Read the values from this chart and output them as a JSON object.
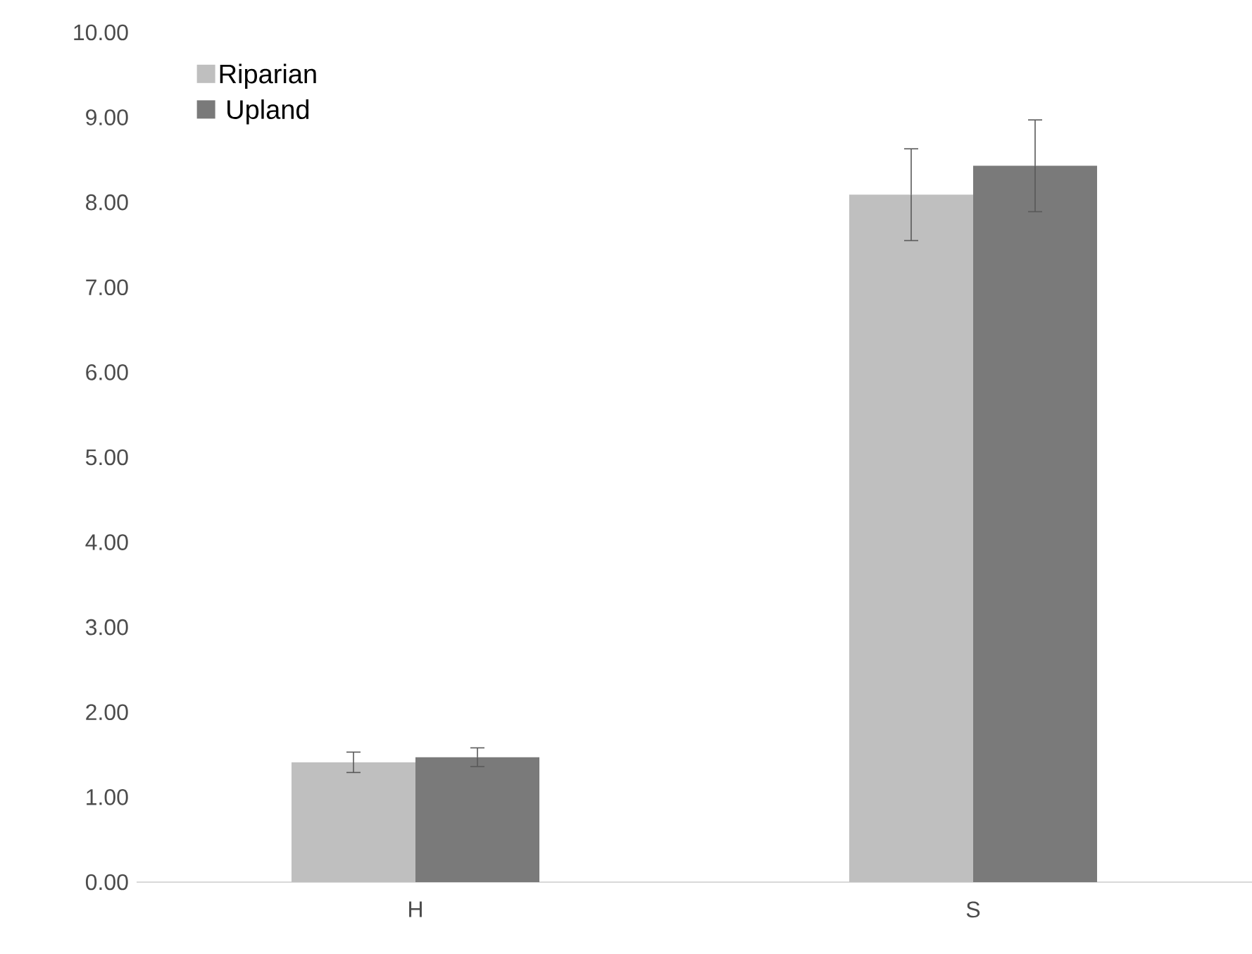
{
  "chart_data": {
    "type": "bar",
    "categories": [
      "H",
      "S"
    ],
    "series": [
      {
        "name": "Riparian",
        "color": "#bfbfbf",
        "values": [
          1.41,
          8.09
        ],
        "errors": [
          0.12,
          0.54
        ]
      },
      {
        "name": "Upland",
        "color": "#7a7a7a",
        "values": [
          1.47,
          8.43
        ],
        "errors": [
          0.11,
          0.54
        ]
      }
    ],
    "ylim": [
      0,
      10
    ],
    "yticks": [
      {
        "value": 0,
        "label": "0.00"
      },
      {
        "value": 1,
        "label": "1.00"
      },
      {
        "value": 2,
        "label": "2.00"
      },
      {
        "value": 3,
        "label": "3.00"
      },
      {
        "value": 4,
        "label": "4.00"
      },
      {
        "value": 5,
        "label": "5.00"
      },
      {
        "value": 6,
        "label": "6.00"
      },
      {
        "value": 7,
        "label": "7.00"
      },
      {
        "value": 8,
        "label": "8.00"
      },
      {
        "value": 9,
        "label": "9.00"
      },
      {
        "value": 10,
        "label": "10.00"
      }
    ],
    "grid": false,
    "legend": "top left"
  }
}
